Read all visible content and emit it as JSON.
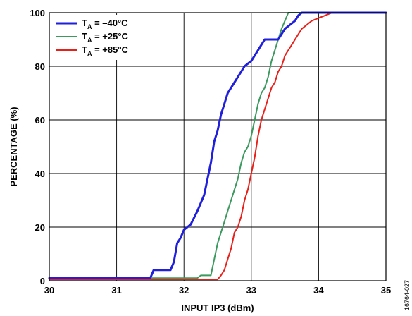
{
  "chart_data": {
    "type": "line",
    "title": "",
    "xlabel": "INPUT IP3 (dBm)",
    "ylabel": "PERCENTAGE (%)",
    "xlim": [
      30,
      35
    ],
    "ylim": [
      0,
      100
    ],
    "xticks": [
      "30",
      "31",
      "32",
      "33",
      "34",
      "35"
    ],
    "yticks": [
      "0",
      "20",
      "40",
      "60",
      "80",
      "100"
    ],
    "grid": true,
    "legend_position": "top-left",
    "figure_id": "16764-027",
    "series": [
      {
        "name": "Tₐ = –40°C",
        "label_main": "T",
        "label_sub": "A",
        "label_rest": " = –40°C",
        "color": "#1f1fdc",
        "x": [
          30.0,
          31.5,
          31.55,
          31.8,
          31.85,
          31.9,
          31.95,
          32.0,
          32.1,
          32.2,
          32.3,
          32.4,
          32.45,
          32.5,
          32.55,
          32.6,
          32.65,
          32.7,
          32.75,
          32.8,
          32.85,
          32.9,
          32.95,
          33.0,
          33.1,
          33.15,
          33.2,
          33.4,
          33.5,
          33.55,
          33.6,
          33.65,
          33.7,
          33.75,
          34.0,
          35.0
        ],
        "y": [
          1,
          1,
          4,
          4,
          7,
          14,
          16,
          19,
          21,
          26,
          32,
          44,
          52,
          56,
          62,
          66,
          70,
          72,
          74,
          76,
          78,
          80,
          81,
          82,
          86,
          88,
          90,
          90,
          94,
          95,
          96,
          97,
          99,
          100,
          100,
          100
        ]
      },
      {
        "name": "Tₐ = +25°C",
        "label_main": "T",
        "label_sub": "A",
        "label_rest": " = +25°C",
        "color": "#3c9a5f",
        "x": [
          30.0,
          32.2,
          32.25,
          32.4,
          32.45,
          32.5,
          32.55,
          32.6,
          32.65,
          32.7,
          32.75,
          32.8,
          32.85,
          32.9,
          32.95,
          33.0,
          33.05,
          33.1,
          33.15,
          33.2,
          33.25,
          33.3,
          33.35,
          33.4,
          33.45,
          33.5,
          33.55,
          33.6,
          34.0,
          35.0
        ],
        "y": [
          1,
          1,
          2,
          2,
          8,
          14,
          18,
          22,
          26,
          30,
          34,
          38,
          44,
          48,
          50,
          54,
          60,
          66,
          70,
          72,
          76,
          82,
          86,
          90,
          94,
          97,
          100,
          100,
          100,
          100
        ]
      },
      {
        "name": "Tₐ = +85°C",
        "label_main": "T",
        "label_sub": "A",
        "label_rest": " = +85°C",
        "color": "#e8201a",
        "x": [
          30.0,
          32.5,
          32.55,
          32.6,
          32.65,
          32.7,
          32.75,
          32.8,
          32.85,
          32.9,
          32.95,
          33.0,
          33.05,
          33.1,
          33.15,
          33.2,
          33.25,
          33.3,
          33.35,
          33.4,
          33.45,
          33.5,
          33.55,
          33.6,
          33.65,
          33.7,
          33.75,
          33.8,
          33.85,
          33.9,
          34.0,
          34.1,
          34.2,
          35.0
        ],
        "y": [
          0.5,
          0.5,
          2,
          4,
          8,
          12,
          18,
          20,
          24,
          30,
          34,
          40,
          46,
          54,
          60,
          64,
          68,
          72,
          74,
          78,
          80,
          84,
          86,
          88,
          90,
          92,
          94,
          95,
          96,
          97,
          98,
          99,
          100,
          100
        ]
      }
    ]
  }
}
